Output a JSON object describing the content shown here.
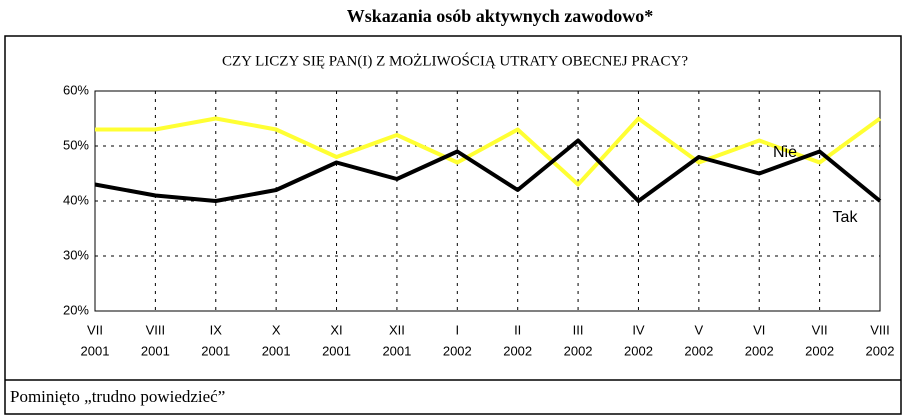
{
  "chart_data": {
    "type": "line",
    "title": "Wskazania osób aktywnych zawodowo*",
    "subtitle": "CZY LICZY SIĘ PAN(I) Z MOŻLIWOŚCIĄ UTRATY OBECNEJ PRACY?",
    "note": "Pominięto „trudno powiedzieć”",
    "categories": [
      [
        "VII",
        "2001"
      ],
      [
        "VIII",
        "2001"
      ],
      [
        "IX",
        "2001"
      ],
      [
        "X",
        "2001"
      ],
      [
        "XI",
        "2001"
      ],
      [
        "XII",
        "2001"
      ],
      [
        "I",
        "2002"
      ],
      [
        "II",
        "2002"
      ],
      [
        "III",
        "2002"
      ],
      [
        "IV",
        "2002"
      ],
      [
        "V",
        "2002"
      ],
      [
        "VI",
        "2002"
      ],
      [
        "VII",
        "2002"
      ],
      [
        "VIII",
        "2002"
      ]
    ],
    "series": [
      {
        "name": "Nie",
        "color": "#ffff33",
        "values": [
          53,
          53,
          55,
          53,
          48,
          52,
          47,
          53,
          43,
          55,
          47,
          51,
          47,
          55
        ]
      },
      {
        "name": "Tak",
        "color": "#000000",
        "values": [
          43,
          41,
          40,
          42,
          47,
          44,
          49,
          42,
          51,
          40,
          48,
          45,
          49,
          40
        ]
      }
    ],
    "ylim": [
      20,
      60
    ],
    "yticks": [
      {
        "value": 20,
        "label": "20%"
      },
      {
        "value": 30,
        "label": "30%"
      },
      {
        "value": 40,
        "label": "40%"
      },
      {
        "value": 50,
        "label": "50%"
      },
      {
        "value": 60,
        "label": "60%"
      }
    ],
    "grid": true
  }
}
